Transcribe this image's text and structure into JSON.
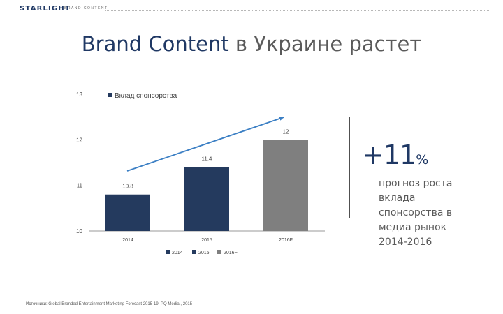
{
  "header": {
    "logo": "STARLIGHT",
    "logo_sub": "BRAND CONTENT"
  },
  "slide": {
    "title_en": "Brand Content",
    "title_ru": "в Украине растет"
  },
  "highlight": {
    "value": "+11",
    "unit": "%",
    "description": "прогноз роста вклада спонсорства в медиа рынок 2014-2016"
  },
  "source_note": "Источники: Global Branded Entertainment Marketing Forecast 2015-19, PQ Media , 2015",
  "colors": {
    "navy": "#243a5e",
    "gray": "#7f7f7f",
    "arrow": "#3b7fc4",
    "title": "#1f3864"
  },
  "chart_data": {
    "type": "bar",
    "series_label": "Вклад спонсорства",
    "categories": [
      "2014",
      "2015",
      "2016F"
    ],
    "values": [
      10.8,
      11.4,
      12
    ],
    "value_labels": [
      "10.8",
      "11.4",
      "12"
    ],
    "bar_colors": [
      "#243a5e",
      "#243a5e",
      "#7f7f7f"
    ],
    "legend_bottom": [
      "2014",
      "2015",
      "2016F"
    ],
    "ylim": [
      10,
      13
    ],
    "yticks": [
      10,
      11,
      12,
      13
    ],
    "xlabel": "",
    "ylabel": "",
    "grid": false,
    "trend_arrow": true
  }
}
